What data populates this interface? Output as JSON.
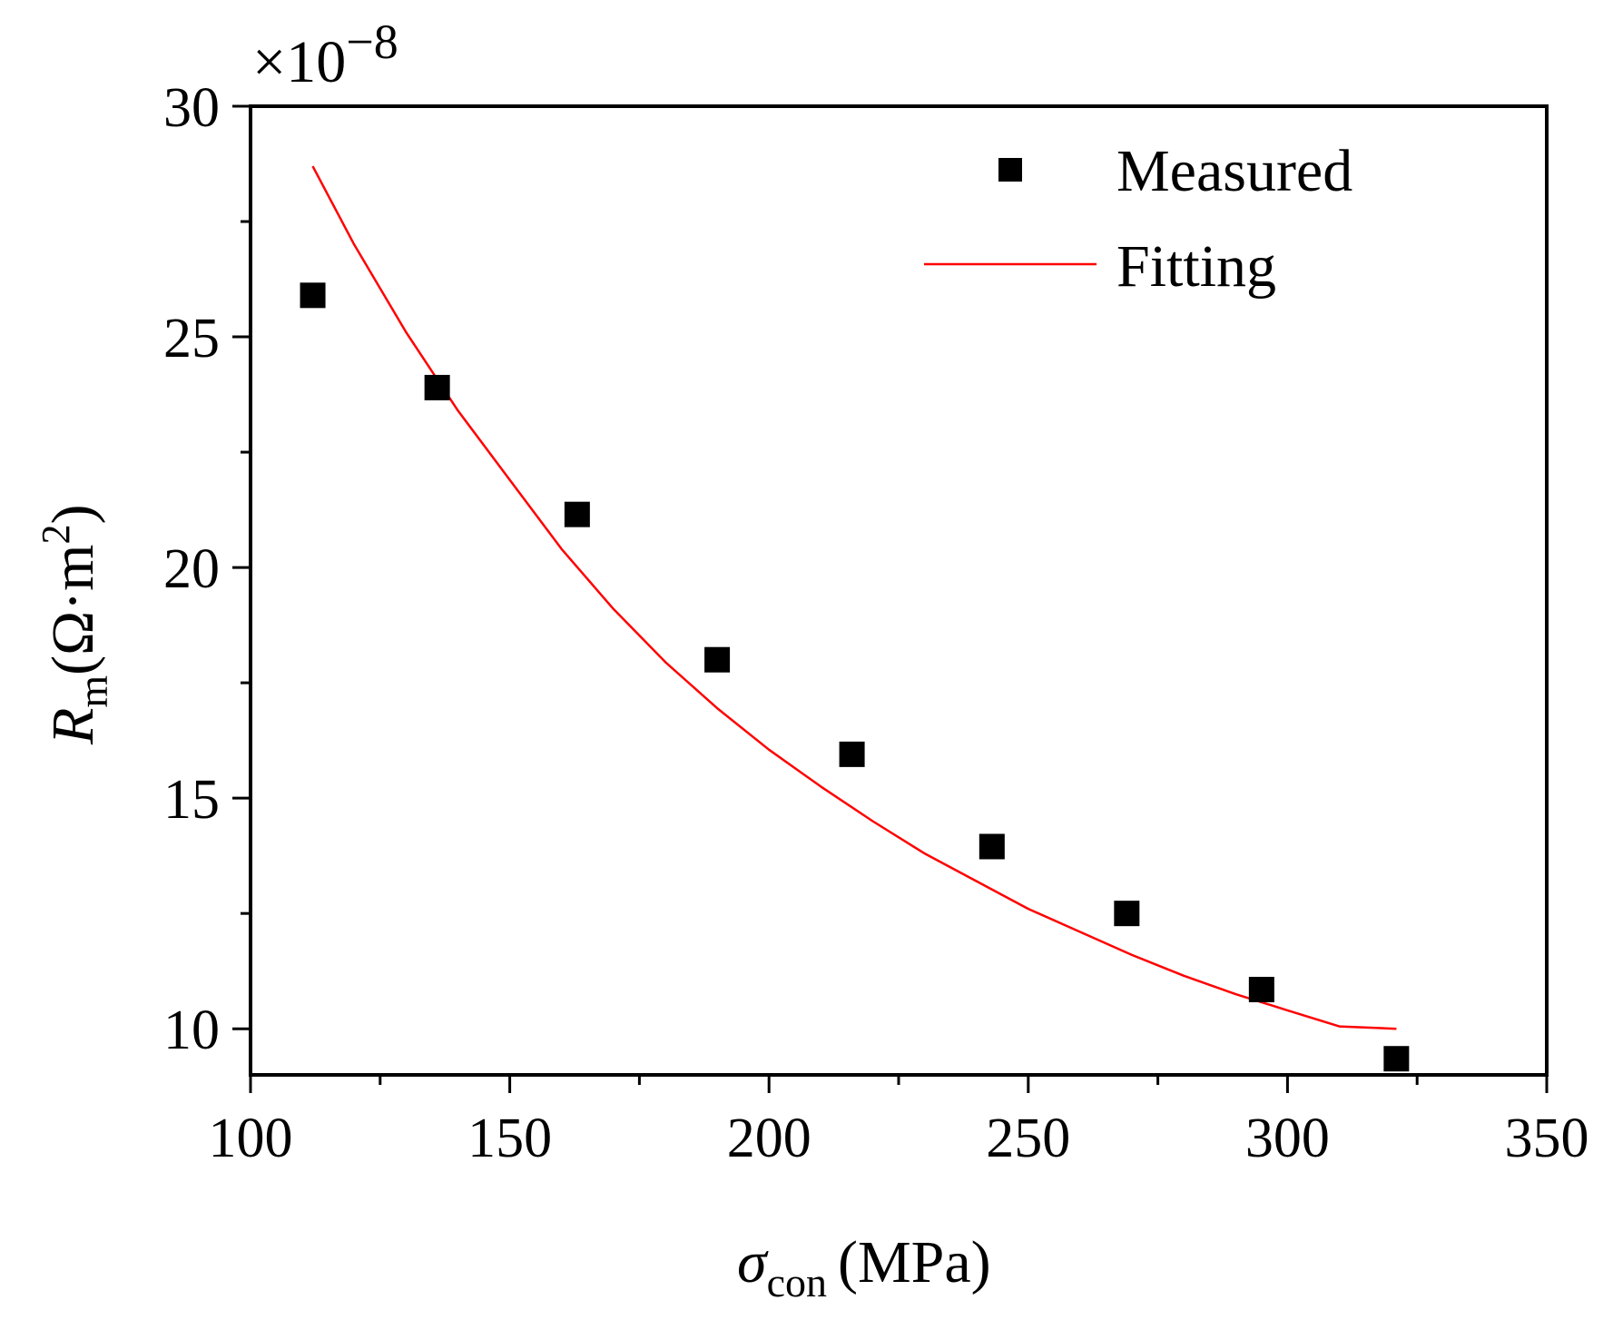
{
  "chart_data": {
    "type": "scatter",
    "multiplier": {
      "base": "×10",
      "exponent": "−8"
    },
    "x_axis": {
      "symbol": "σ",
      "subscript": "con",
      "unit": "(MPa)",
      "lim": [
        100,
        350
      ],
      "ticks": [
        100,
        150,
        200,
        250,
        300,
        350
      ],
      "tick_labels": [
        "100",
        "150",
        "200",
        "250",
        "300",
        "350"
      ],
      "minor_ticks": [
        125,
        175,
        225,
        275,
        325
      ]
    },
    "y_axis": {
      "symbol": "R",
      "subscript": "m",
      "unit_open": "(Ω·m",
      "unit_sup": "2",
      "unit_close": ")",
      "lim": [
        9,
        30
      ],
      "ticks": [
        10,
        15,
        20,
        25,
        30
      ],
      "tick_labels": [
        "10",
        "15",
        "20",
        "25",
        "30"
      ],
      "minor_ticks": [
        12.5,
        17.5,
        22.5,
        27.5
      ]
    },
    "series": [
      {
        "name": "Measured",
        "type": "scatter",
        "color": "#000000",
        "marker": "square",
        "x": [
          112,
          136,
          163,
          190,
          216,
          243,
          269,
          295,
          321
        ],
        "y": [
          25.9,
          23.9,
          21.15,
          18.0,
          15.95,
          13.95,
          12.5,
          10.85,
          9.35
        ]
      },
      {
        "name": "Fitting",
        "type": "line",
        "color": "#ff0000",
        "x": [
          112,
          120,
          130,
          140,
          150,
          160,
          170,
          180,
          190,
          200,
          210,
          220,
          230,
          240,
          250,
          260,
          270,
          280,
          290,
          300,
          310,
          321
        ],
        "y": [
          28.7,
          27.0,
          25.1,
          23.4,
          21.9,
          20.4,
          19.1,
          17.95,
          16.95,
          16.05,
          15.25,
          14.5,
          13.8,
          13.2,
          12.6,
          12.1,
          11.6,
          11.15,
          10.75,
          10.4,
          10.05,
          10.0
        ]
      }
    ],
    "legend": {
      "position": "top-right",
      "entries": [
        "Measured",
        "Fitting"
      ]
    },
    "grid": false
  }
}
